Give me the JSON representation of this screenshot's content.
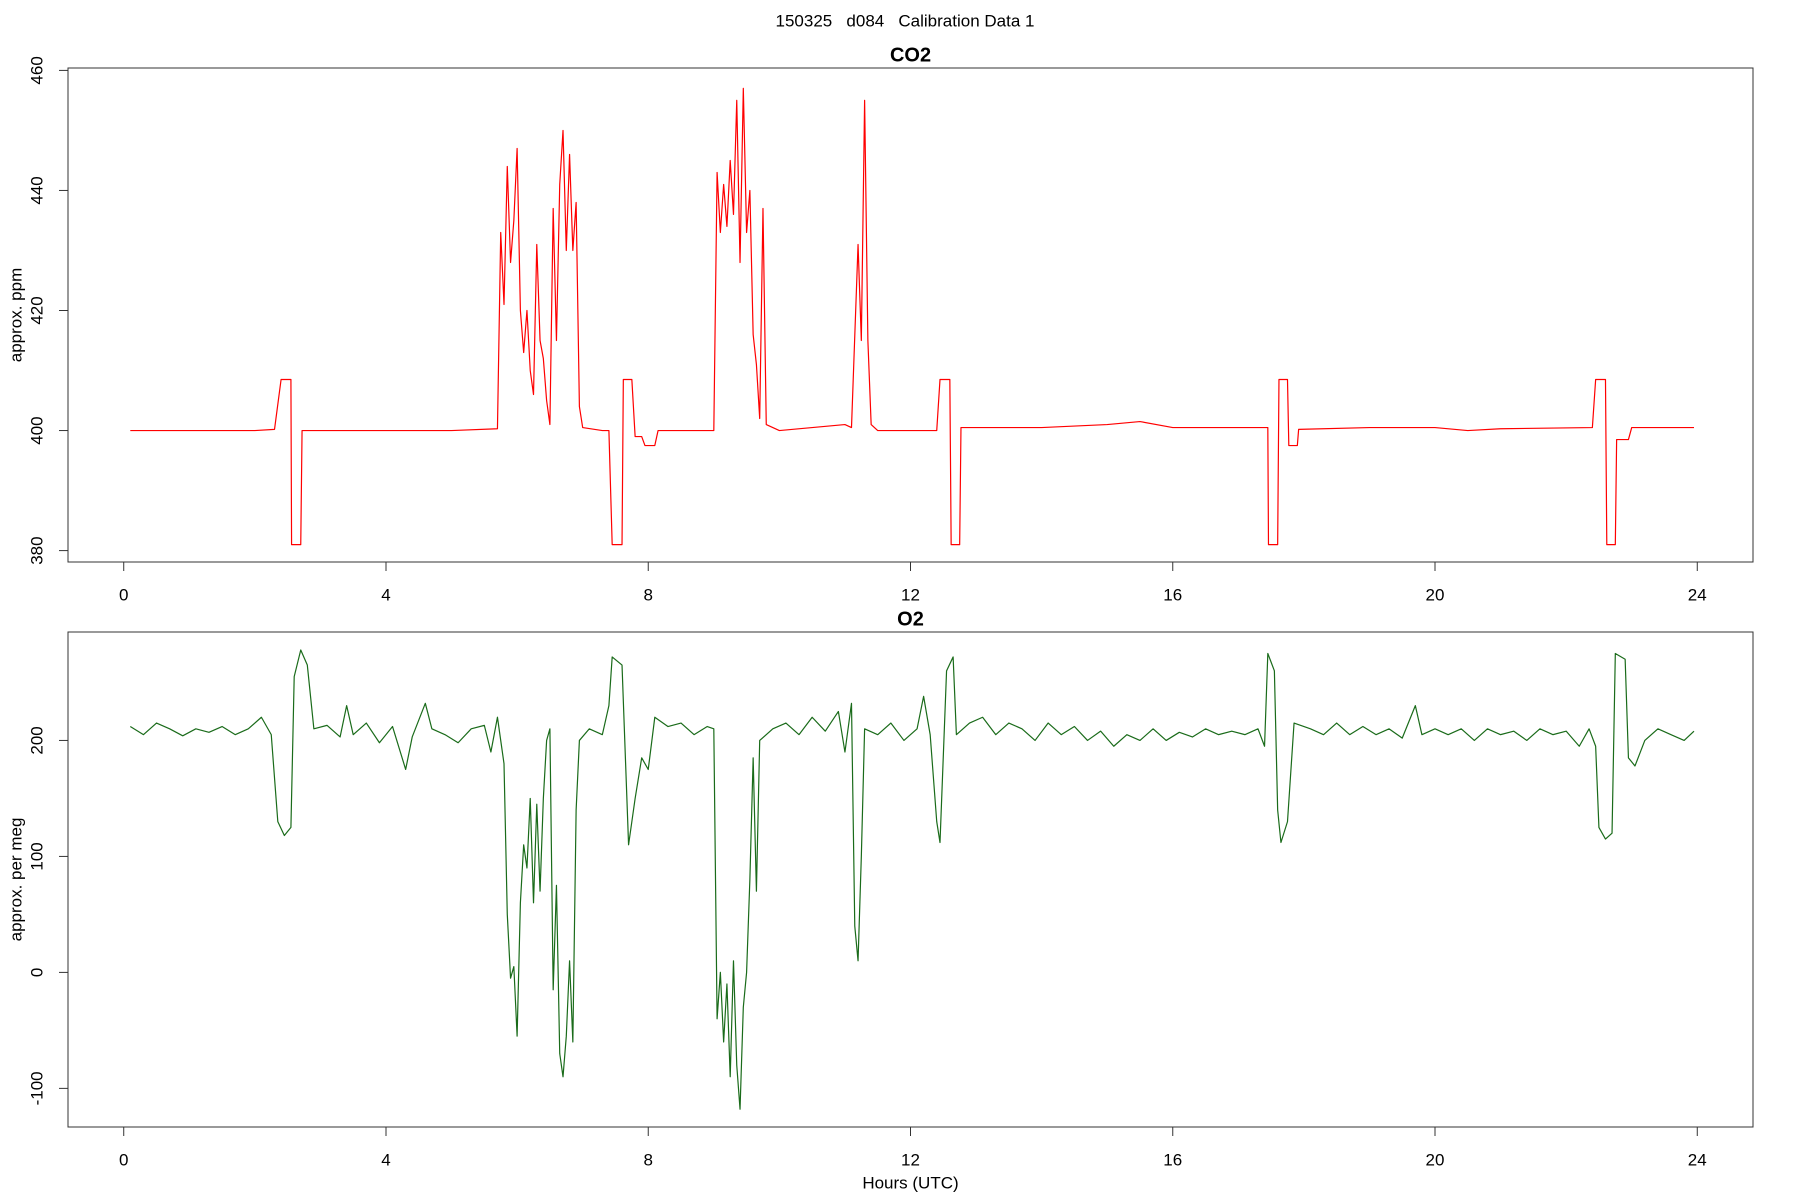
{
  "title": "150325   d084   Calibration Data 1",
  "chart_data": [
    {
      "type": "line",
      "title": "CO2",
      "y_label": "approx. ppm",
      "color": "#ff0000",
      "xlim": [
        -0.85,
        24.85
      ],
      "ylim": [
        378.1,
        460.4
      ],
      "xticks": [
        0,
        4,
        8,
        12,
        16,
        20,
        24
      ],
      "yticks": [
        380,
        400,
        420,
        440,
        460
      ],
      "x": [
        0.1,
        1,
        2,
        2.3,
        2.4,
        2.55,
        2.56,
        2.7,
        2.72,
        4,
        5,
        5.7,
        5.75,
        5.8,
        5.85,
        5.9,
        5.95,
        6.0,
        6.05,
        6.1,
        6.15,
        6.2,
        6.25,
        6.3,
        6.35,
        6.4,
        6.45,
        6.5,
        6.55,
        6.6,
        6.65,
        6.7,
        6.75,
        6.8,
        6.85,
        6.9,
        6.95,
        7.0,
        7.3,
        7.4,
        7.45,
        7.6,
        7.62,
        7.75,
        7.8,
        7.9,
        7.95,
        8.1,
        8.15,
        9.0,
        9.05,
        9.1,
        9.15,
        9.2,
        9.25,
        9.3,
        9.35,
        9.4,
        9.45,
        9.5,
        9.55,
        9.6,
        9.65,
        9.7,
        9.75,
        9.8,
        10,
        11,
        11.1,
        11.2,
        11.25,
        11.3,
        11.35,
        11.4,
        11.5,
        12.4,
        12.45,
        12.6,
        12.62,
        12.75,
        12.77,
        14,
        15,
        15.5,
        16,
        17,
        17.45,
        17.46,
        17.6,
        17.62,
        17.75,
        17.77,
        17.9,
        17.92,
        19,
        20,
        20.5,
        21,
        22.4,
        22.45,
        22.6,
        22.62,
        22.75,
        22.77,
        22.95,
        23,
        23.95
      ],
      "values": [
        400,
        400,
        400,
        400.2,
        408.5,
        408.5,
        381,
        381,
        400,
        400,
        400,
        400.3,
        433,
        421,
        444,
        428,
        435,
        447,
        420,
        413,
        420,
        410,
        406,
        431,
        415,
        412,
        405,
        401,
        437,
        415,
        441,
        450,
        430,
        446,
        430,
        438,
        404,
        400.5,
        400,
        400,
        381,
        381,
        408.5,
        408.5,
        399,
        399,
        397.5,
        397.5,
        400,
        400,
        443,
        433,
        441,
        434,
        445,
        436,
        455,
        428,
        457,
        433,
        440,
        416,
        411,
        402,
        437,
        401,
        400,
        401,
        400.5,
        431,
        415,
        455,
        415,
        401,
        400,
        400,
        408.5,
        408.5,
        381,
        381,
        400.5,
        400.5,
        401,
        401.5,
        400.5,
        400.5,
        400.5,
        381,
        381,
        408.5,
        408.5,
        397.5,
        397.5,
        400.2,
        400.5,
        400.5,
        400,
        400.3,
        400.5,
        408.5,
        408.5,
        381,
        381,
        398.5,
        398.5,
        400.5,
        400.5
      ]
    },
    {
      "type": "line",
      "title": "O2",
      "y_label": "approx. per meg",
      "x_label": "Hours (UTC)",
      "color": "#1a6b1a",
      "xlim": [
        -0.85,
        24.85
      ],
      "ylim": [
        -133.3,
        293.5
      ],
      "xticks": [
        0,
        4,
        8,
        12,
        16,
        20,
        24
      ],
      "yticks": [
        -100,
        0,
        100,
        200
      ],
      "x": [
        0.1,
        0.3,
        0.5,
        0.7,
        0.9,
        1.1,
        1.3,
        1.5,
        1.7,
        1.9,
        2.1,
        2.25,
        2.35,
        2.45,
        2.55,
        2.6,
        2.7,
        2.8,
        2.9,
        3.1,
        3.3,
        3.4,
        3.5,
        3.7,
        3.9,
        4.1,
        4.3,
        4.4,
        4.6,
        4.7,
        4.9,
        5.1,
        5.3,
        5.5,
        5.6,
        5.7,
        5.8,
        5.85,
        5.9,
        5.95,
        6.0,
        6.05,
        6.1,
        6.15,
        6.2,
        6.25,
        6.3,
        6.35,
        6.4,
        6.45,
        6.5,
        6.55,
        6.6,
        6.65,
        6.7,
        6.75,
        6.8,
        6.85,
        6.9,
        6.95,
        7.1,
        7.3,
        7.4,
        7.45,
        7.6,
        7.7,
        7.8,
        7.9,
        8.0,
        8.1,
        8.3,
        8.5,
        8.7,
        8.9,
        9.0,
        9.05,
        9.1,
        9.15,
        9.2,
        9.25,
        9.3,
        9.35,
        9.4,
        9.45,
        9.5,
        9.55,
        9.6,
        9.65,
        9.7,
        9.9,
        10.1,
        10.3,
        10.5,
        10.7,
        10.9,
        11.0,
        11.1,
        11.15,
        11.2,
        11.25,
        11.3,
        11.5,
        11.7,
        11.9,
        12.1,
        12.2,
        12.3,
        12.4,
        12.45,
        12.55,
        12.65,
        12.7,
        12.9,
        13.1,
        13.3,
        13.5,
        13.7,
        13.9,
        14.1,
        14.3,
        14.5,
        14.7,
        14.9,
        15.1,
        15.3,
        15.5,
        15.7,
        15.9,
        16.1,
        16.3,
        16.5,
        16.7,
        16.9,
        17.1,
        17.3,
        17.4,
        17.45,
        17.55,
        17.6,
        17.65,
        17.75,
        17.85,
        18.1,
        18.3,
        18.5,
        18.7,
        18.9,
        19.1,
        19.3,
        19.5,
        19.7,
        19.8,
        20.0,
        20.2,
        20.4,
        20.6,
        20.8,
        21.0,
        21.2,
        21.4,
        21.6,
        21.8,
        22.0,
        22.2,
        22.35,
        22.45,
        22.5,
        22.6,
        22.7,
        22.75,
        22.9,
        22.95,
        23.05,
        23.2,
        23.4,
        23.6,
        23.8,
        23.95
      ],
      "values": [
        212,
        205,
        215,
        210,
        204,
        210,
        207,
        212,
        205,
        210,
        220,
        205,
        130,
        118,
        125,
        255,
        278,
        265,
        210,
        213,
        203,
        230,
        205,
        215,
        198,
        212,
        175,
        203,
        232,
        210,
        205,
        198,
        210,
        213,
        190,
        220,
        180,
        50,
        -5,
        5,
        -55,
        60,
        110,
        90,
        150,
        60,
        145,
        70,
        150,
        200,
        210,
        -15,
        75,
        -70,
        -90,
        -55,
        10,
        -60,
        140,
        200,
        210,
        205,
        230,
        272,
        265,
        110,
        150,
        185,
        175,
        220,
        212,
        215,
        205,
        212,
        210,
        -40,
        0,
        -60,
        -10,
        -90,
        10,
        -80,
        -118,
        -30,
        0,
        80,
        185,
        70,
        200,
        210,
        215,
        205,
        220,
        208,
        225,
        190,
        232,
        40,
        10,
        100,
        210,
        205,
        215,
        200,
        210,
        238,
        205,
        130,
        112,
        260,
        272,
        205,
        215,
        220,
        205,
        215,
        210,
        200,
        215,
        205,
        212,
        200,
        208,
        195,
        205,
        200,
        210,
        200,
        207,
        203,
        210,
        205,
        208,
        205,
        210,
        195,
        275,
        260,
        140,
        112,
        130,
        215,
        210,
        205,
        215,
        205,
        212,
        205,
        210,
        202,
        230,
        205,
        210,
        205,
        210,
        200,
        210,
        205,
        208,
        200,
        210,
        205,
        208,
        195,
        210,
        195,
        125,
        115,
        120,
        275,
        270,
        185,
        178,
        200,
        210,
        205,
        200,
        208
      ]
    }
  ]
}
